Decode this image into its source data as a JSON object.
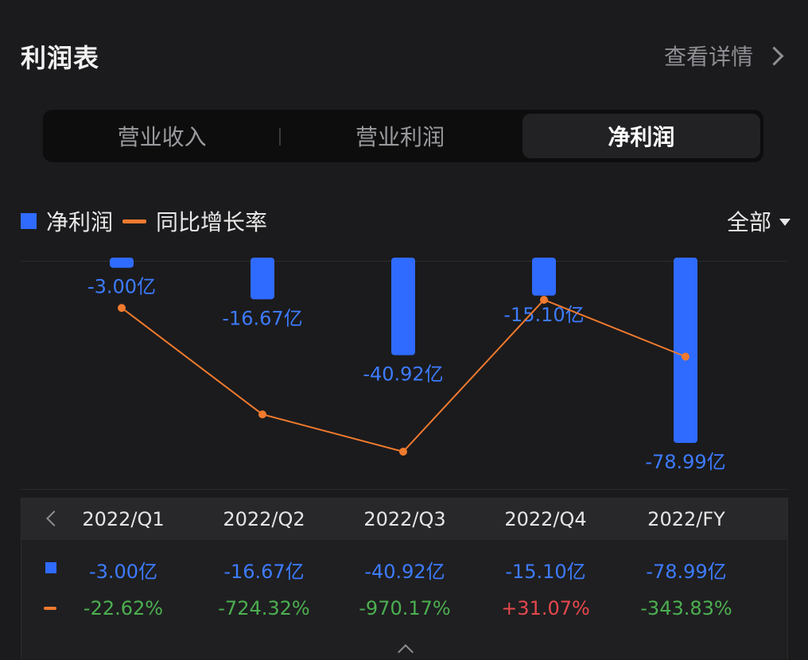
{
  "header": {
    "title": "利润表",
    "details_label": "查看详情"
  },
  "tabs": [
    {
      "label": "营业收入",
      "active": false
    },
    {
      "label": "营业利润",
      "active": false
    },
    {
      "label": "净利润",
      "active": true
    }
  ],
  "legend": {
    "bar_label": "净利润",
    "line_label": "同比增长率"
  },
  "filter": {
    "label": "全部"
  },
  "colors": {
    "bar": "#2f6bff",
    "line": "#f07a2e",
    "positive": "#e5484d",
    "negative": "#4caf50",
    "bar_label": "#3d7bff"
  },
  "chart_data": {
    "type": "bar",
    "categories": [
      "2022/Q1",
      "2022/Q2",
      "2022/Q3",
      "2022/Q4",
      "2022/FY"
    ],
    "series": [
      {
        "name": "净利润",
        "type": "bar",
        "values": [
          -3.0,
          -16.67,
          -40.92,
          -15.1,
          -78.99
        ],
        "labels": [
          "-3.00亿",
          "-16.67亿",
          "-40.92亿",
          "-15.10亿",
          "-78.99亿"
        ],
        "unit": "亿"
      },
      {
        "name": "同比增长率",
        "type": "line",
        "values": [
          -22.62,
          -724.32,
          -970.17,
          31.07,
          -343.83
        ],
        "labels": [
          "-22.62%",
          "-724.32%",
          "-970.17%",
          "+31.07%",
          "-343.83%"
        ],
        "unit": "%"
      }
    ]
  },
  "table": {
    "headers": [
      "2022/Q1",
      "2022/Q2",
      "2022/Q3",
      "2022/Q4",
      "2022/FY"
    ],
    "net_profit": [
      "-3.00亿",
      "-16.67亿",
      "-40.92亿",
      "-15.10亿",
      "-78.99亿"
    ],
    "yoy": [
      "-22.62%",
      "-724.32%",
      "-970.17%",
      "+31.07%",
      "-343.83%"
    ]
  }
}
